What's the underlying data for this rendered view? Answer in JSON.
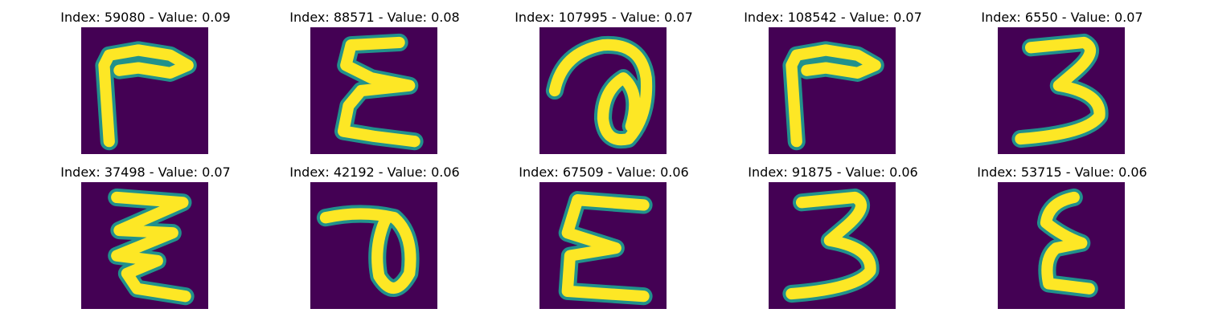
{
  "panels": [
    {
      "index": "59080",
      "value": "0.09",
      "title": "Index: 59080 - Value: 0.09",
      "glyph": "hook"
    },
    {
      "index": "88571",
      "value": "0.08",
      "title": "Index: 88571 - Value: 0.08",
      "glyph": "sigma"
    },
    {
      "index": "107995",
      "value": "0.07",
      "title": "Index: 107995 - Value: 0.07",
      "glyph": "loop-a"
    },
    {
      "index": "108542",
      "value": "0.07",
      "title": "Index: 108542 - Value: 0.07",
      "glyph": "hook"
    },
    {
      "index": "6550",
      "value": "0.07",
      "title": "Index: 6550 - Value: 0.07",
      "glyph": "three"
    },
    {
      "index": "37498",
      "value": "0.07",
      "title": "Index: 37498 - Value: 0.07",
      "glyph": "zigzag"
    },
    {
      "index": "42192",
      "value": "0.06",
      "title": "Index: 42192 - Value: 0.06",
      "glyph": "loop-p"
    },
    {
      "index": "67509",
      "value": "0.06",
      "title": "Index: 67509 - Value: 0.06",
      "glyph": "e"
    },
    {
      "index": "91875",
      "value": "0.06",
      "title": "Index: 91875 - Value: 0.06",
      "glyph": "three"
    },
    {
      "index": "53715",
      "value": "0.06",
      "title": "Index: 53715 - Value: 0.06",
      "glyph": "epsilon"
    }
  ],
  "colors": {
    "background": "#440154",
    "stroke": "#fde725",
    "edge": "#21918c",
    "page": "#ffffff"
  }
}
